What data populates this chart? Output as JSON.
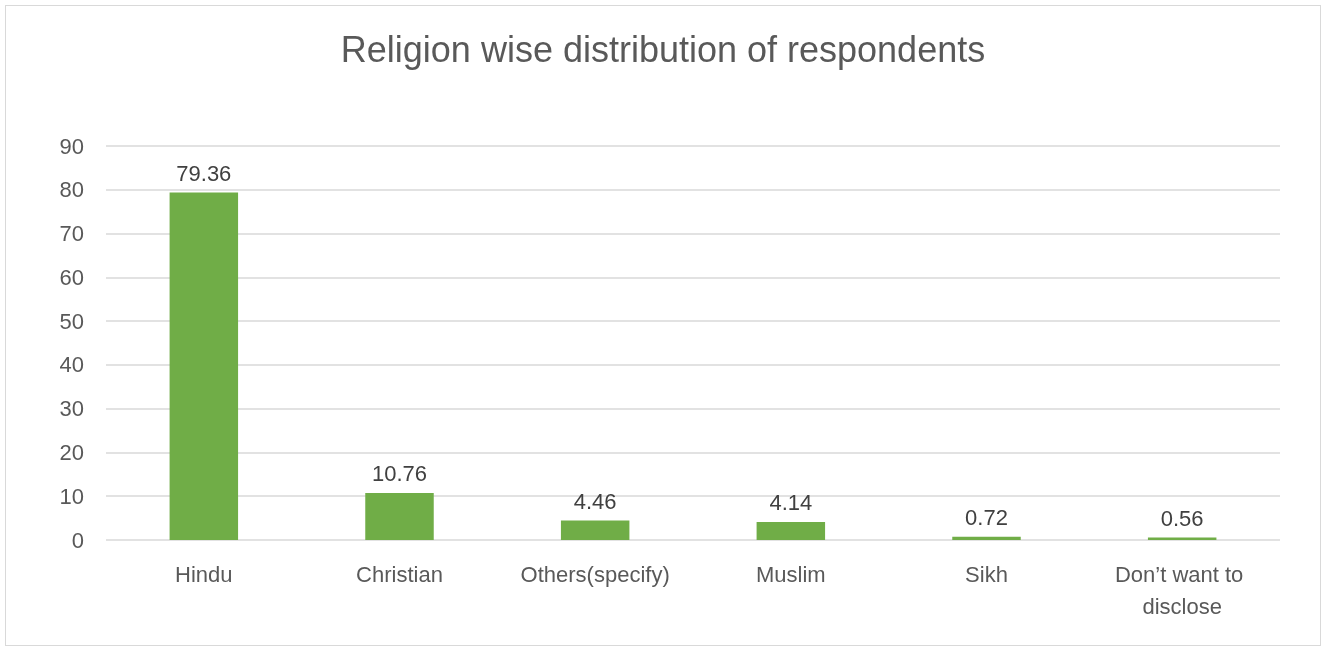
{
  "chart_data": {
    "type": "bar",
    "title": "Religion wise distribution of respondents",
    "categories": [
      "Hindu",
      "Christian",
      "Others(specify)",
      "Muslim",
      "Sikh",
      "Don’t want to disclose"
    ],
    "values": [
      79.36,
      10.76,
      4.46,
      4.14,
      0.72,
      0.56
    ],
    "color": "#70ad47",
    "ylim": [
      0,
      90
    ],
    "yticks": [
      0,
      10,
      20,
      30,
      40,
      50,
      60,
      70,
      80,
      90
    ],
    "grid": "y",
    "data_labels": true
  }
}
